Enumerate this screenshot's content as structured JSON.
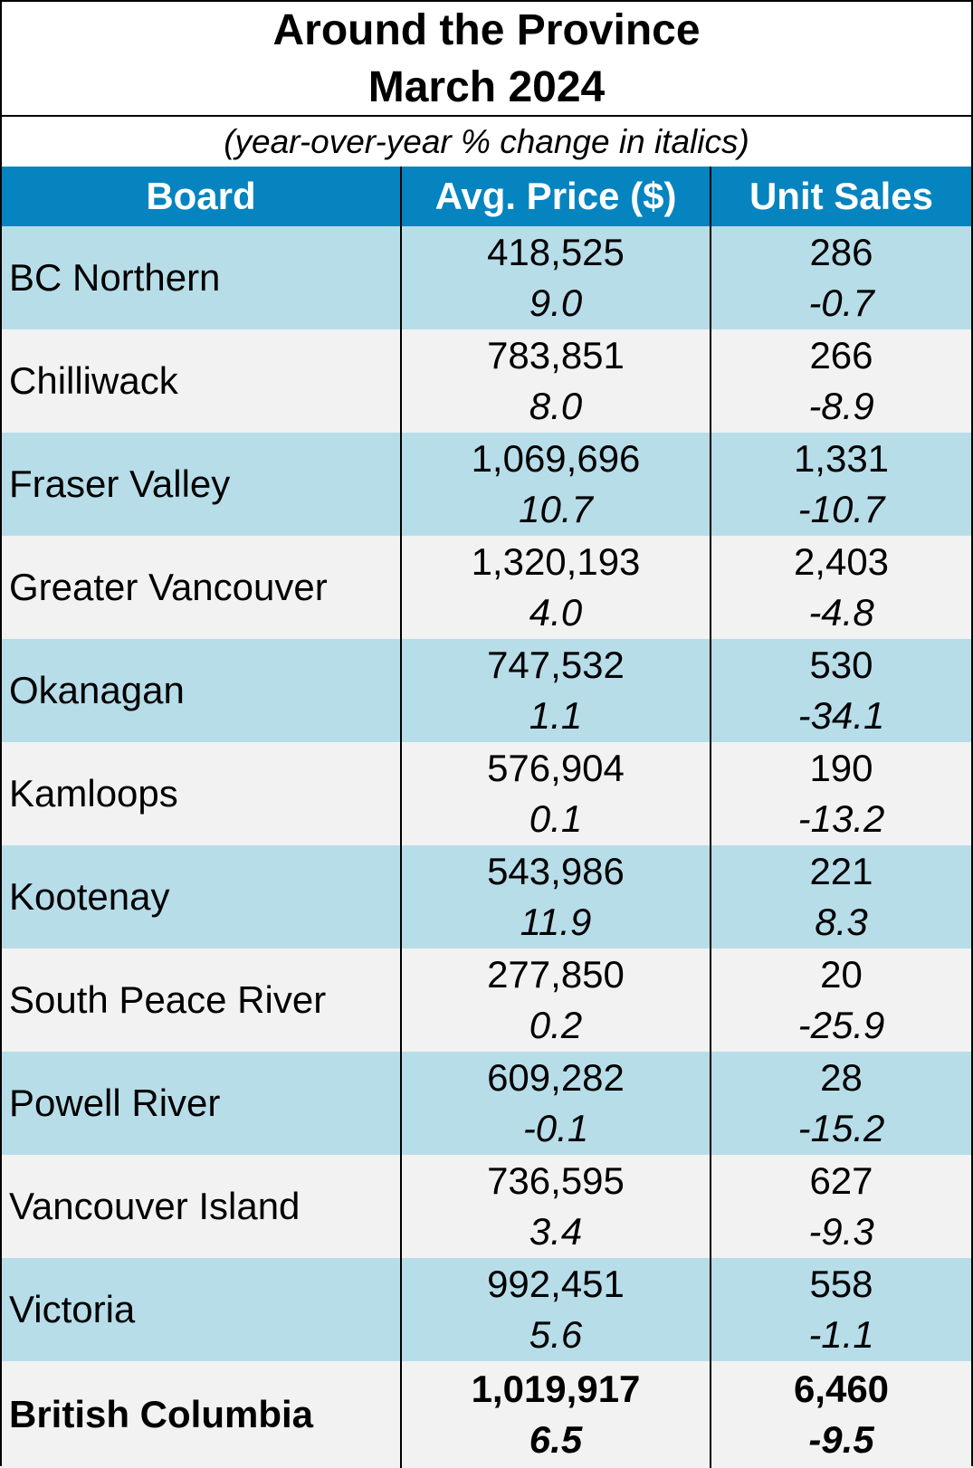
{
  "title": {
    "line1": "Around the Province",
    "line2": "March 2024"
  },
  "subtitle": "(year-over-year % change in italics)",
  "columns": {
    "board": "Board",
    "price": "Avg. Price ($)",
    "sales": "Unit Sales"
  },
  "rows": [
    {
      "board": "BC Northern",
      "price": "418,525",
      "price_pct": "9.0",
      "sales": "286",
      "sales_pct": "-0.7"
    },
    {
      "board": "Chilliwack",
      "price": "783,851",
      "price_pct": "8.0",
      "sales": "266",
      "sales_pct": "-8.9"
    },
    {
      "board": "Fraser Valley",
      "price": "1,069,696",
      "price_pct": "10.7",
      "sales": "1,331",
      "sales_pct": "-10.7"
    },
    {
      "board": "Greater Vancouver",
      "price": "1,320,193",
      "price_pct": "4.0",
      "sales": "2,403",
      "sales_pct": "-4.8"
    },
    {
      "board": "Okanagan",
      "price": "747,532",
      "price_pct": "1.1",
      "sales": "530",
      "sales_pct": "-34.1"
    },
    {
      "board": "Kamloops",
      "price": "576,904",
      "price_pct": "0.1",
      "sales": "190",
      "sales_pct": "-13.2"
    },
    {
      "board": "Kootenay",
      "price": "543,986",
      "price_pct": "11.9",
      "sales": "221",
      "sales_pct": "8.3"
    },
    {
      "board": "South Peace River",
      "price": "277,850",
      "price_pct": "0.2",
      "sales": "20",
      "sales_pct": "-25.9"
    },
    {
      "board": "Powell River",
      "price": "609,282",
      "price_pct": "-0.1",
      "sales": "28",
      "sales_pct": "-15.2"
    },
    {
      "board": "Vancouver Island",
      "price": "736,595",
      "price_pct": "3.4",
      "sales": "627",
      "sales_pct": "-9.3"
    },
    {
      "board": "Victoria",
      "price": "992,451",
      "price_pct": "5.6",
      "sales": "558",
      "sales_pct": "-1.1"
    }
  ],
  "total": {
    "board": "British Columbia",
    "price": "1,019,917",
    "price_pct": "6.5",
    "sales": "6,460",
    "sales_pct": "-9.5"
  },
  "colors": {
    "header_bg": "#0584c0",
    "row_blue": "#b7dde9",
    "row_gray": "#f2f2f2"
  }
}
